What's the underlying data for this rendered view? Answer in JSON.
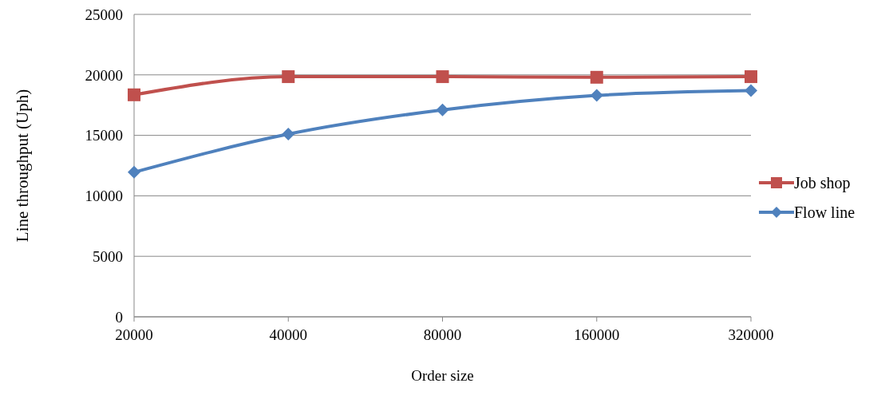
{
  "chart_data": {
    "type": "line",
    "xlabel": "Order size",
    "ylabel": "Line throughput (Uph)",
    "categories": [
      "20000",
      "40000",
      "80000",
      "160000",
      "320000"
    ],
    "series": [
      {
        "name": "Job shop",
        "color": "#c0504d",
        "marker": "square",
        "values": [
          18350,
          19850,
          19850,
          19800,
          19850
        ]
      },
      {
        "name": "Flow line",
        "color": "#4f81bd",
        "marker": "diamond",
        "values": [
          11950,
          15100,
          17100,
          18300,
          18700
        ]
      }
    ],
    "ylim": [
      0,
      25000
    ],
    "yticks": [
      0,
      5000,
      10000,
      15000,
      20000,
      25000
    ],
    "grid": "y",
    "legend": "right",
    "line_style": "solid"
  }
}
